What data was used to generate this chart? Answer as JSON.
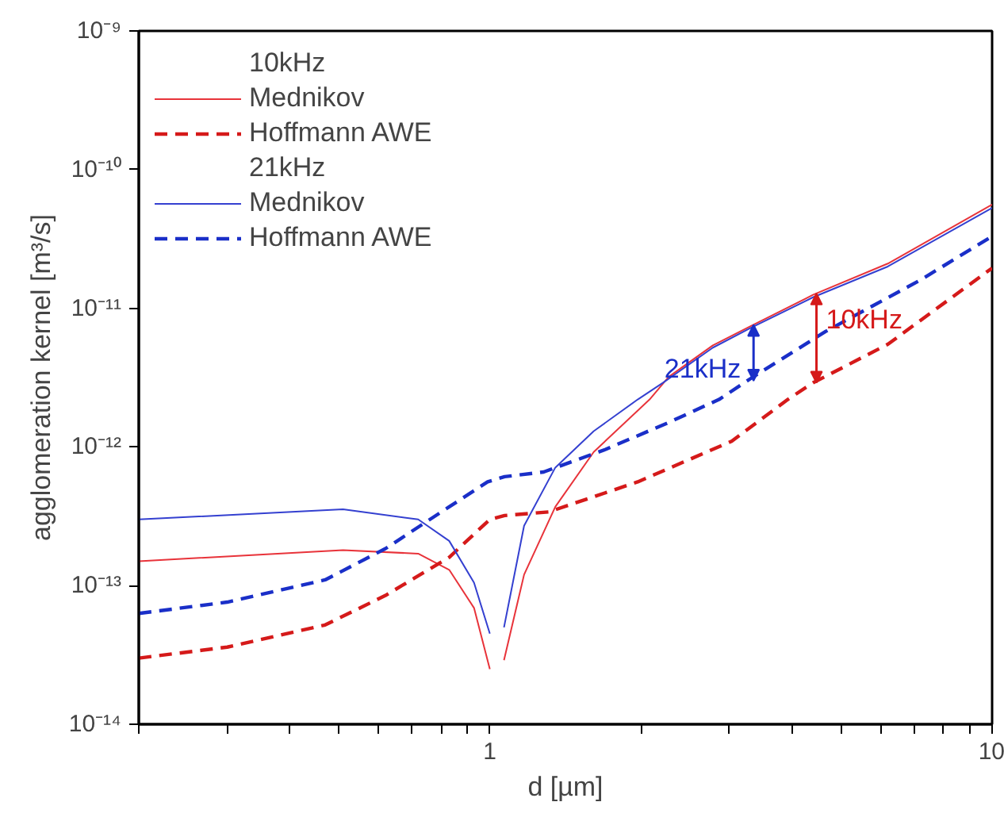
{
  "chart_data": {
    "type": "line",
    "xlabel": "d [µm]",
    "ylabel": "agglomeration kernel [m³/s]",
    "log": "xy",
    "grid": false,
    "legend": "top left",
    "xlim": [
      0.2,
      10
    ],
    "ylim": [
      1e-14,
      1e-09
    ],
    "xticks": [
      {
        "value": 0.2,
        "label": null
      },
      {
        "value": 0.3,
        "label": null
      },
      {
        "value": 0.4,
        "label": null
      },
      {
        "value": 0.5,
        "label": null
      },
      {
        "value": 0.6,
        "label": null
      },
      {
        "value": 0.7,
        "label": null
      },
      {
        "value": 0.8,
        "label": null
      },
      {
        "value": 0.9,
        "label": null
      },
      1,
      {
        "value": 2,
        "label": null
      },
      {
        "value": 3,
        "label": null
      },
      {
        "value": 4,
        "label": null
      },
      {
        "value": 5,
        "label": null
      },
      {
        "value": 6,
        "label": null
      },
      {
        "value": 7,
        "label": null
      },
      {
        "value": 8,
        "label": null
      },
      {
        "value": 9,
        "label": null
      },
      10
    ],
    "yticks": [
      {
        "value": 1e-14,
        "label": "10⁻¹⁴"
      },
      {
        "value": 1e-13,
        "label": "10⁻¹³"
      },
      {
        "value": 1e-12,
        "label": "10⁻¹²"
      },
      {
        "value": 1e-11,
        "label": "10⁻¹¹"
      },
      {
        "value": 1e-10,
        "label": "10⁻¹⁰"
      },
      {
        "value": 1e-09,
        "label": "10⁻⁹"
      }
    ],
    "series": [
      {
        "name": "Mednikov",
        "color": "#e8333a",
        "line_style": "solid",
        "x": [
          0.2,
          0.51,
          0.72,
          0.83,
          0.93,
          1.0,
          1.03,
          1.067,
          1.17,
          1.35,
          1.61,
          2.08,
          2.27,
          2.78,
          3.3,
          4.4,
          6.2,
          10
        ],
        "values": [
          1.5e-13,
          1.8e-13,
          1.7e-13,
          1.3e-13,
          6.9e-14,
          2.5e-14,
          null,
          2.9e-14,
          1.2e-13,
          3.7e-13,
          9.2e-13,
          2.2e-12,
          3.2e-12,
          5.4e-12,
          7.4e-12,
          1.25e-11,
          2.1e-11,
          5.6e-11
        ]
      },
      {
        "name": "Hoffmann AWE",
        "color": "#d51a1a",
        "line_style": "dashed",
        "x": [
          0.2,
          0.3,
          0.47,
          0.62,
          0.83,
          1.0,
          1.07,
          1.31,
          1.97,
          3.03,
          3.92,
          4.4,
          6.2,
          10
        ],
        "values": [
          3e-14,
          3.6e-14,
          5.2e-14,
          8.5e-14,
          1.6e-13,
          3e-13,
          3.2e-13,
          3.4e-13,
          5.6e-13,
          1.1e-12,
          2.2e-12,
          2.9e-12,
          5.5e-12,
          1.95e-11
        ]
      },
      {
        "name": "Mednikov",
        "color": "#3440d0",
        "line_style": "solid",
        "x": [
          0.2,
          0.51,
          0.72,
          0.83,
          0.93,
          1.0,
          1.03,
          1.067,
          1.17,
          1.35,
          1.61,
          1.97,
          2.21,
          2.78,
          3.3,
          4.4,
          6.2,
          10
        ],
        "values": [
          3e-13,
          3.55e-13,
          3e-13,
          2.1e-13,
          1.05e-13,
          4.5e-14,
          null,
          5e-14,
          2.7e-13,
          7.1e-13,
          1.3e-12,
          2.2e-12,
          2.9e-12,
          5.2e-12,
          7.2e-12,
          1.2e-11,
          2e-11,
          5.3e-11
        ]
      },
      {
        "name": "Hoffmann AWE",
        "color": "#1a2fc8",
        "line_style": "dashed",
        "x": [
          0.2,
          0.3,
          0.47,
          0.62,
          0.83,
          0.99,
          1.07,
          1.28,
          1.7,
          2.27,
          2.86,
          3.3,
          4.66,
          7.2,
          10
        ],
        "values": [
          6.3e-14,
          7.6e-14,
          1.1e-13,
          1.85e-13,
          3.7e-13,
          5.6e-13,
          6.1e-13,
          6.6e-13,
          9.6e-13,
          1.5e-12,
          2.2e-12,
          3.1e-12,
          6.8e-12,
          1.6e-11,
          3.3e-11
        ]
      }
    ],
    "annotations": [
      "10kHz",
      "21kHz",
      {
        "text": "21kHz",
        "x": 3.35,
        "y": 3e-12
      },
      {
        "text": "10kHz",
        "x": 4.47,
        "y": 2.9e-12
      }
    ]
  }
}
